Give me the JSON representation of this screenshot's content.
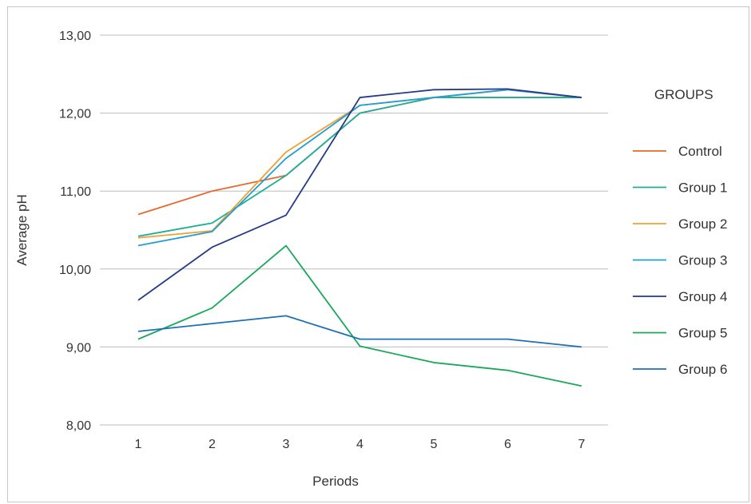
{
  "chart_data": {
    "type": "line",
    "title": "",
    "xlabel": "Periods",
    "ylabel": "Average pH",
    "categories": [
      "1",
      "2",
      "3",
      "4",
      "5",
      "6",
      "7"
    ],
    "y_tick_labels": [
      "8,00",
      "9,00",
      "10,00",
      "11,00",
      "12,00",
      "13,00"
    ],
    "ylim": [
      8,
      13
    ],
    "grid": true,
    "legend": {
      "title": "GROUPS",
      "position": "right"
    },
    "series": [
      {
        "name": "Control",
        "color": "#e8682c",
        "values": [
          10.7,
          11.0,
          11.2,
          12.0,
          12.2,
          12.2,
          12.2
        ]
      },
      {
        "name": "Group 1",
        "color": "#1cae99",
        "values": [
          10.42,
          10.59,
          11.2,
          12.0,
          12.2,
          12.2,
          12.2
        ]
      },
      {
        "name": "Group 2",
        "color": "#f0a032",
        "values": [
          10.4,
          10.49,
          11.5,
          12.1,
          12.2,
          12.3,
          12.2
        ]
      },
      {
        "name": "Group 3",
        "color": "#209fd2",
        "values": [
          10.3,
          10.48,
          11.42,
          12.1,
          12.2,
          12.3,
          12.2
        ]
      },
      {
        "name": "Group 4",
        "color": "#253a88",
        "values": [
          9.6,
          10.28,
          10.69,
          12.2,
          12.3,
          12.31,
          12.2
        ]
      },
      {
        "name": "Group 5",
        "color": "#1aa85a",
        "values": [
          9.1,
          9.5,
          10.3,
          9.01,
          8.8,
          8.7,
          8.5
        ]
      },
      {
        "name": "Group 6",
        "color": "#1e70b6",
        "values": [
          9.2,
          9.3,
          9.4,
          9.1,
          9.1,
          9.1,
          9.0
        ]
      }
    ]
  }
}
